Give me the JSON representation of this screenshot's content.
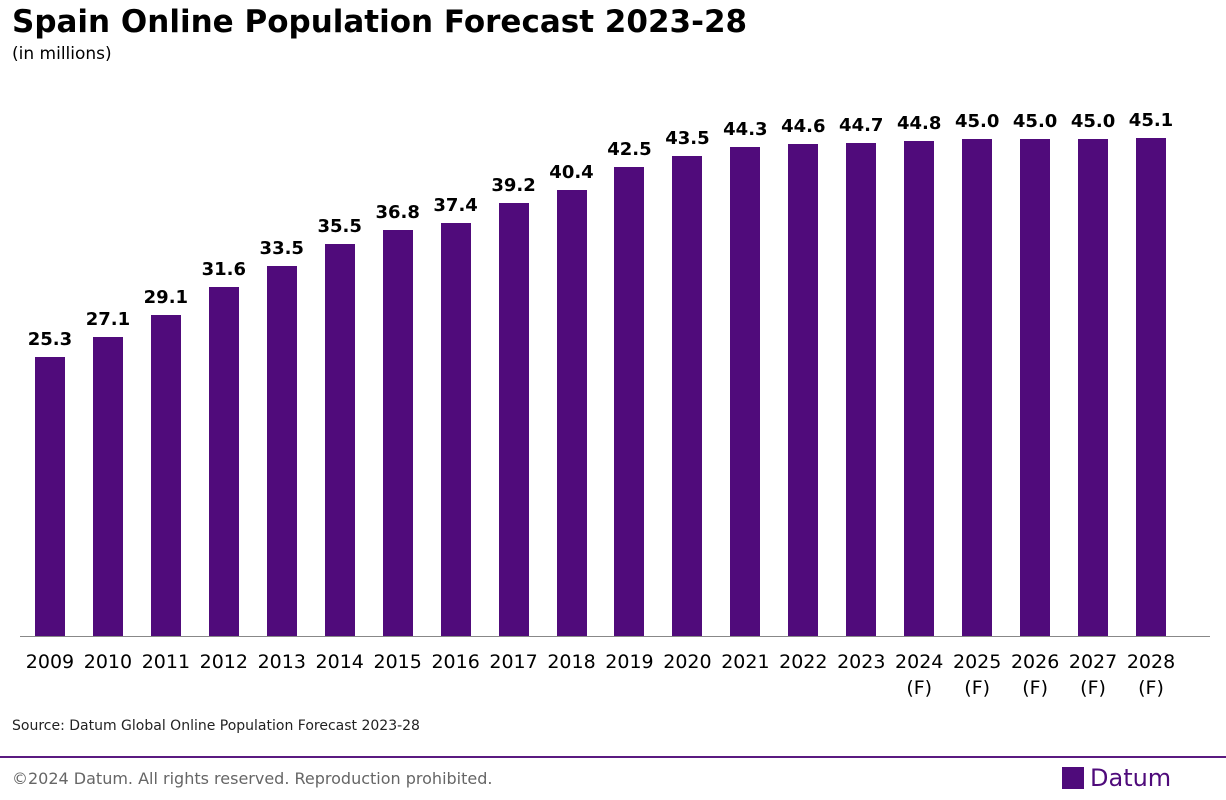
{
  "chart_data": {
    "type": "bar",
    "title": "Spain Online Population Forecast 2023-28",
    "subtitle": "(in millions)",
    "categories": [
      "2009",
      "2010",
      "2011",
      "2012",
      "2013",
      "2014",
      "2015",
      "2016",
      "2017",
      "2018",
      "2019",
      "2020",
      "2021",
      "2022",
      "2023",
      "2024\n(F)",
      "2025\n(F)",
      "2026\n(F)",
      "2027\n(F)",
      "2028\n(F)"
    ],
    "values": [
      25.3,
      27.1,
      29.1,
      31.6,
      33.5,
      35.5,
      36.8,
      37.4,
      39.2,
      40.4,
      42.5,
      43.5,
      44.3,
      44.6,
      44.7,
      44.8,
      45,
      45,
      45,
      45.1
    ],
    "value_labels": [
      "25.3",
      "27.1",
      "29.1",
      "31.6",
      "33.5",
      "35.5",
      "36.8",
      "37.4",
      "39.2",
      "40.4",
      "42.5",
      "43.5",
      "44.3",
      "44.6",
      "44.7",
      "44.8",
      "45.0",
      "45.0",
      "45.0",
      "45.1"
    ],
    "color": "#500b7b",
    "ylim": [
      0,
      50
    ],
    "grid": false,
    "source": "Source: Datum Global Online Population Forecast 2023-28",
    "footer": "©2024 Datum. All rights reserved. Reproduction prohibited.",
    "logo": "Datum"
  }
}
